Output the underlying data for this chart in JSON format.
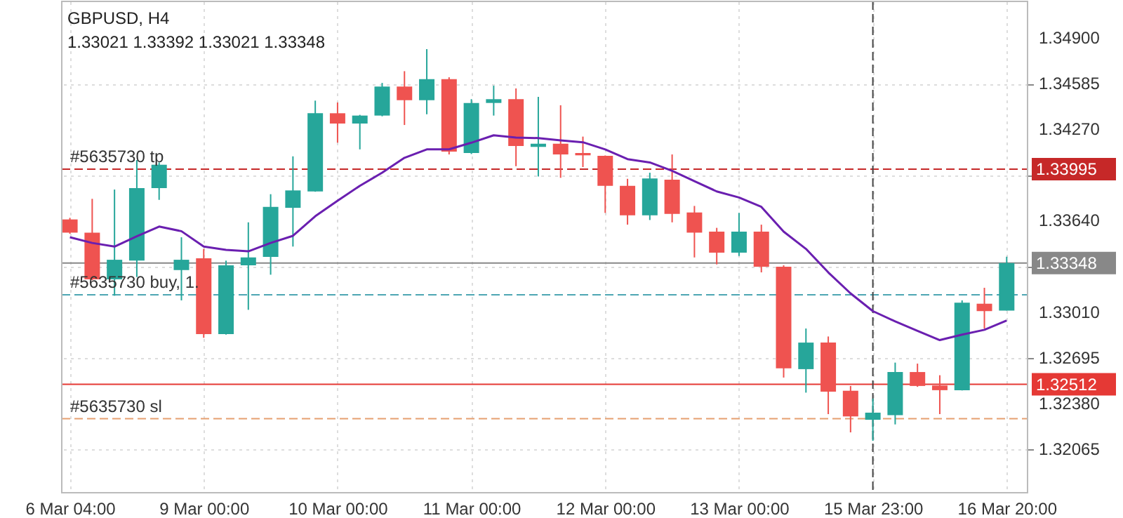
{
  "chart_data": {
    "type": "candlestick",
    "title": "GBPUSD, H4",
    "subtitle": "1.33021 1.33392 1.33021 1.33348",
    "categories": [
      "6 Mar 04:00",
      null,
      null,
      null,
      null,
      null,
      "9 Mar 00:00",
      null,
      null,
      null,
      null,
      null,
      "10 Mar 00:00",
      null,
      null,
      null,
      null,
      null,
      "11 Mar 00:00",
      null,
      null,
      null,
      null,
      null,
      "12 Mar 00:00",
      null,
      null,
      null,
      null,
      null,
      "13 Mar 00:00",
      null,
      null,
      null,
      null,
      null,
      "15 Mar 23:00",
      null,
      null,
      null,
      null,
      null,
      "16 Mar 20:00"
    ],
    "ohlc": [
      [
        1.33649,
        1.3366,
        1.3355,
        1.33558
      ],
      [
        1.33558,
        1.33791,
        1.3323,
        1.33236
      ],
      [
        1.33236,
        1.33855,
        1.33123,
        1.33371
      ],
      [
        1.33365,
        1.34058,
        1.33252,
        1.33865
      ],
      [
        1.33865,
        1.34042,
        1.33784,
        1.34026
      ],
      [
        1.333,
        1.33526,
        1.33091,
        1.33371
      ],
      [
        1.33381,
        1.33446,
        1.32833,
        1.32859
      ],
      [
        1.32859,
        1.33365,
        1.32855,
        1.33333
      ],
      [
        1.33333,
        1.33629,
        1.33026,
        1.33387
      ],
      [
        1.33391,
        1.33823,
        1.33268,
        1.33736
      ],
      [
        1.33729,
        1.34084,
        1.33462,
        1.33849
      ],
      [
        1.33842,
        1.34468,
        1.3384,
        1.34381
      ],
      [
        1.34381,
        1.34455,
        1.34178,
        1.3431
      ],
      [
        1.3431,
        1.3437,
        1.34132,
        1.34365
      ],
      [
        1.34365,
        1.3459,
        1.3436,
        1.34565
      ],
      [
        1.34565,
        1.34671,
        1.343,
        1.34471
      ],
      [
        1.34471,
        1.34823,
        1.34374,
        1.34616
      ],
      [
        1.34616,
        1.34629,
        1.34097,
        1.34116
      ],
      [
        1.34107,
        1.34478,
        1.341,
        1.34452
      ],
      [
        1.34452,
        1.34571,
        1.34365,
        1.34478
      ],
      [
        1.34478,
        1.34552,
        1.34016,
        1.34155
      ],
      [
        1.34149,
        1.34494,
        1.33945,
        1.34171
      ],
      [
        1.34171,
        1.34436,
        1.33936,
        1.34097
      ],
      [
        1.34107,
        1.3422,
        1.3401,
        1.34091
      ],
      [
        1.34087,
        1.3409,
        1.33694,
        1.33881
      ],
      [
        1.33881,
        1.33929,
        1.33613,
        1.33678
      ],
      [
        1.33678,
        1.33971,
        1.33645,
        1.33932
      ],
      [
        1.33923,
        1.34097,
        1.33629,
        1.33687
      ],
      [
        1.33697,
        1.33742,
        1.33387,
        1.33558
      ],
      [
        1.33565,
        1.33591,
        1.33339,
        1.3342
      ],
      [
        1.3342,
        1.33694,
        1.33397,
        1.33565
      ],
      [
        1.33565,
        1.33613,
        1.33284,
        1.33323
      ],
      [
        1.33323,
        1.33333,
        1.32559,
        1.32623
      ],
      [
        1.32617,
        1.32897,
        1.32455,
        1.328
      ],
      [
        1.328,
        1.32842,
        1.32307,
        1.32462
      ],
      [
        1.32468,
        1.32501,
        1.32181,
        1.32291
      ],
      [
        1.32268,
        1.32414,
        1.32123,
        1.32317
      ],
      [
        1.323,
        1.32662,
        1.32236,
        1.32597
      ],
      [
        1.32597,
        1.32655,
        1.32495,
        1.32501
      ],
      [
        1.32504,
        1.32575,
        1.32307,
        1.32472
      ],
      [
        1.32472,
        1.33091,
        1.3247,
        1.33075
      ],
      [
        1.33068,
        1.33178,
        1.32897,
        1.33017
      ],
      [
        1.33021,
        1.33392,
        1.33021,
        1.33348
      ]
    ],
    "colors": [
      "#ef5350",
      "#ef5350",
      "#26a69a",
      "#26a69a",
      "#26a69a",
      "#26a69a",
      "#ef5350",
      "#26a69a",
      "#26a69a",
      "#26a69a",
      "#26a69a",
      "#26a69a",
      "#ef5350",
      "#26a69a",
      "#26a69a",
      "#ef5350",
      "#26a69a",
      "#ef5350",
      "#26a69a",
      "#26a69a",
      "#ef5350",
      "#26a69a",
      "#ef5350",
      "#ef5350",
      "#ef5350",
      "#ef5350",
      "#26a69a",
      "#ef5350",
      "#ef5350",
      "#ef5350",
      "#26a69a",
      "#ef5350",
      "#ef5350",
      "#26a69a",
      "#ef5350",
      "#ef5350",
      "#26a69a",
      "#26a69a",
      "#ef5350",
      "#ef5350",
      "#26a69a",
      "#ef5350",
      "#26a69a"
    ],
    "series": [
      {
        "type": "line",
        "color": "#6a1fb0",
        "values": [
          1.33526,
          1.33487,
          1.33462,
          1.33533,
          1.336,
          1.33568,
          1.33462,
          1.33439,
          1.33429,
          1.33487,
          1.33536,
          1.33671,
          1.33778,
          1.33881,
          1.33971,
          1.34074,
          1.34132,
          1.34132,
          1.34178,
          1.34229,
          1.34213,
          1.3421,
          1.34194,
          1.34181,
          1.34132,
          1.34065,
          1.34042,
          1.33984,
          1.33913,
          1.33842,
          1.338,
          1.33736,
          1.33565,
          1.33446,
          1.33284,
          1.33139,
          1.33017,
          1.32946,
          1.32881,
          1.32817,
          1.32855,
          1.32888,
          1.32952
        ]
      }
    ],
    "ylim": [
      1.31765,
      1.35152
    ],
    "yticks": [
      {
        "value": 1.349,
        "label": "1.34900"
      },
      1.34585,
      {
        "value": 1.3427,
        "label": "1.34270"
      },
      {
        "value": 1.33955,
        "label": null
      },
      {
        "value": 1.3364,
        "label": "1.33640"
      },
      {
        "value": 1.33325,
        "label": null
      },
      {
        "value": 1.3301,
        "label": "1.33010"
      },
      1.32695,
      {
        "value": 1.3238,
        "label": "1.32380"
      },
      1.32065
    ],
    "y2lim": [
      1.31765,
      1.35152
    ],
    "y2ticks": [
      1.33995,
      1.33348,
      1.32512
    ],
    "grid": true,
    "ref_lines": [
      {
        "axis": "y",
        "value": 1.33995,
        "label": "#5635730 tp",
        "color": "#c62828",
        "line_style": "dashed"
      },
      {
        "axis": "y",
        "value": 1.33348,
        "label": null,
        "color": "#888888",
        "line_style": "solid"
      },
      {
        "axis": "y",
        "value": 1.3313,
        "label": "#5635730 buy, 1.",
        "color": "#4da6b3",
        "line_style": "dashed"
      },
      {
        "axis": "y",
        "value": 1.32512,
        "label": null,
        "color": "#e53935",
        "line_style": "solid"
      },
      {
        "axis": "y",
        "value": 1.32275,
        "label": "#5635730 sl",
        "color": "#e6a070",
        "line_style": "dashed"
      },
      {
        "axis": "x",
        "value": "15 Mar 23:00",
        "label": null,
        "color": "#444444",
        "line_style": "dashed"
      }
    ]
  }
}
